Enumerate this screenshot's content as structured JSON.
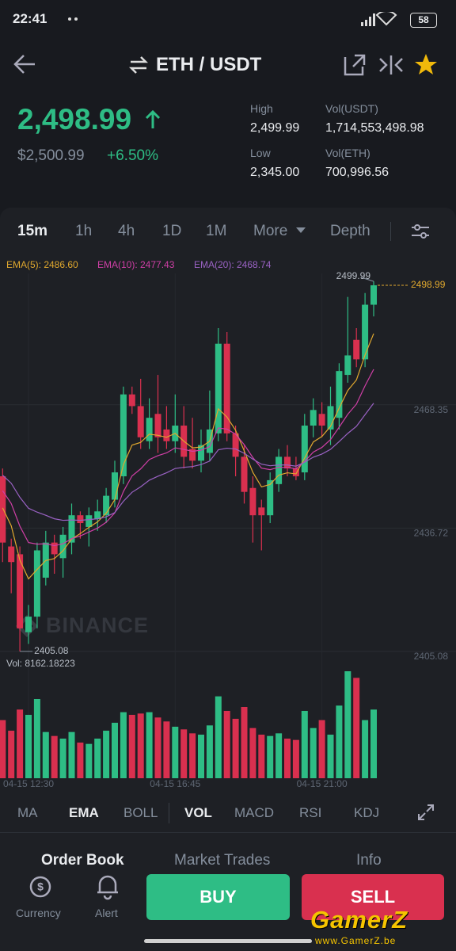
{
  "status_bar": {
    "time": "22:41",
    "battery": "58"
  },
  "header": {
    "pair": "ETH / USDT"
  },
  "price": {
    "last": "2,498.99",
    "usd": "$2,500.99",
    "change": "+6.50%"
  },
  "stats": [
    {
      "label": "High",
      "value": "2,499.99"
    },
    {
      "label": "Vol(USDT)",
      "value": "1,714,553,498.98"
    },
    {
      "label": "Low",
      "value": "2,345.00"
    },
    {
      "label": "Vol(ETH)",
      "value": "700,996.56"
    }
  ],
  "intervals": [
    "15m",
    "1h",
    "4h",
    "1D",
    "1M",
    "More",
    "Depth"
  ],
  "chart_data": {
    "type": "candlestick",
    "categories": [
      null,
      null,
      null,
      "04-15 12:30",
      null,
      null,
      null,
      null,
      null,
      null,
      null,
      null,
      null,
      null,
      null,
      null,
      null,
      null,
      null,
      null,
      "04-15 16:45",
      null,
      null,
      null,
      null,
      null,
      null,
      null,
      null,
      null,
      null,
      null,
      null,
      null,
      null,
      null,
      null,
      "04-15 21:00",
      null,
      null,
      null,
      null,
      null,
      null
    ],
    "open": [
      2450,
      2432,
      2430,
      2410,
      2414,
      2424,
      2433,
      2429,
      2433,
      2440,
      2437,
      2439,
      2440,
      2444,
      2450,
      2471,
      2468,
      2459,
      2466,
      2462,
      2459,
      2463,
      2457,
      2454,
      2456,
      2461,
      2484,
      2461,
      2455,
      2447,
      2442,
      2440,
      2448,
      2455,
      2452,
      2451,
      2463,
      2466,
      2462,
      2465,
      2476,
      2485,
      2480,
      2494
    ],
    "high": [
      2452,
      2434,
      2432,
      2417,
      2433,
      2436,
      2435,
      2437,
      2443,
      2441,
      2442,
      2444,
      2447,
      2454,
      2473,
      2473,
      2475,
      2470,
      2476,
      2468,
      2471,
      2468,
      2465,
      2462,
      2472,
      2488,
      2487,
      2463,
      2458,
      2450,
      2444,
      2451,
      2457,
      2458,
      2455,
      2466,
      2470,
      2469,
      2473,
      2479,
      2496,
      2488,
      2497,
      2499.99
    ],
    "low": [
      2428,
      2420,
      2405.08,
      2407,
      2411,
      2422,
      2425,
      2424,
      2430,
      2434,
      2432,
      2436,
      2438,
      2442,
      2448,
      2466,
      2457,
      2457,
      2456,
      2457,
      2456,
      2452,
      2452,
      2451,
      2454,
      2459,
      2459,
      2450,
      2443,
      2433,
      2431,
      2438,
      2446,
      2450,
      2449,
      2449,
      2460,
      2460,
      2458,
      2462,
      2474,
      2478,
      2478,
      2491
    ],
    "close": [
      2433,
      2428,
      2411,
      2414,
      2431,
      2433,
      2430,
      2435,
      2440,
      2438,
      2440,
      2441,
      2445,
      2451,
      2471,
      2468,
      2460,
      2465,
      2460,
      2459,
      2463,
      2455,
      2454,
      2458,
      2462,
      2484,
      2461,
      2455,
      2446,
      2440,
      2440,
      2449,
      2455,
      2452,
      2450,
      2463,
      2467,
      2463,
      2468,
      2477,
      2481,
      2480,
      2494,
      2498.99
    ],
    "volume": [
      4400,
      3600,
      5200,
      4800,
      6000,
      3500,
      3200,
      3000,
      3500,
      2700,
      2600,
      3000,
      3600,
      4200,
      5000,
      4800,
      4900,
      5000,
      4600,
      4300,
      3900,
      3700,
      3400,
      3300,
      4000,
      6200,
      5100,
      4500,
      5400,
      3800,
      3300,
      3200,
      3400,
      3000,
      2900,
      5100,
      3800,
      4400,
      3300,
      5500,
      8100,
      7600,
      4400,
      5200
    ],
    "series": [
      {
        "label": "EMA(5): 2486.60",
        "color": "#e0a82e",
        "values": [
          2441.9,
          2437.3,
          2428.5,
          2423.7,
          2426.1,
          2428.4,
          2428.9,
          2430.9,
          2433.9,
          2435.3,
          2436.9,
          2438.3,
          2440.5,
          2444.0,
          2453.0,
          2458.0,
          2458.7,
          2460.8,
          2460.5,
          2460.0,
          2461.0,
          2459.0,
          2457.3,
          2457.5,
          2459.0,
          2467.3,
          2465.2,
          2461.8,
          2456.5,
          2451.0,
          2447.3,
          2447.9,
          2450.3,
          2450.9,
          2450.6,
          2454.7,
          2458.8,
          2460.2,
          2462.8,
          2467.5,
          2472.0,
          2474.7,
          2481.1,
          2486.6
        ]
      },
      {
        "label": "EMA(10): 2477.43",
        "color": "#cf3fa6",
        "values": [
          2446.3,
          2443.0,
          2437.2,
          2433.0,
          2432.6,
          2432.7,
          2432.2,
          2432.7,
          2434.0,
          2434.7,
          2435.7,
          2436.7,
          2438.2,
          2440.6,
          2446.1,
          2450.1,
          2451.9,
          2454.3,
          2455.3,
          2456.0,
          2457.3,
          2456.9,
          2456.4,
          2456.7,
          2457.6,
          2462.4,
          2462.1,
          2460.8,
          2458.1,
          2454.8,
          2452.1,
          2451.7,
          2452.3,
          2452.3,
          2451.9,
          2453.8,
          2456.2,
          2457.4,
          2459.4,
          2462.6,
          2465.9,
          2468.5,
          2473.2,
          2477.43
        ]
      },
      {
        "label": "EMA(20): 2468.74",
        "color": "#9a62c4",
        "values": [
          2450.3,
          2448.2,
          2444.6,
          2441.8,
          2440.8,
          2440.0,
          2439.1,
          2438.7,
          2438.8,
          2438.7,
          2438.9,
          2439.1,
          2439.6,
          2440.7,
          2443.6,
          2445.9,
          2447.3,
          2449.0,
          2450.0,
          2450.9,
          2452.0,
          2452.3,
          2452.5,
          2453.0,
          2453.9,
          2456.8,
          2457.2,
          2457.0,
          2455.9,
          2454.4,
          2453.1,
          2452.7,
          2452.9,
          2452.9,
          2452.6,
          2453.6,
          2454.9,
          2455.7,
          2456.9,
          2458.9,
          2461.0,
          2462.8,
          2465.8,
          2468.74
        ]
      }
    ],
    "up_color": "#2ebd85",
    "down_color": "#d9304f",
    "ylim": [
      2401.42,
      2502.03
    ],
    "yticks": [
      2405.08,
      2436.72,
      2468.35
    ],
    "high_marker": 2499.99,
    "low_marker": 2405.08,
    "last_price": 2498.99,
    "volume_label": "Vol: 8162.18223",
    "watermark": "BINANCE"
  },
  "indicators": [
    "MA",
    "EMA",
    "BOLL",
    "VOL",
    "MACD",
    "RSI",
    "KDJ"
  ],
  "tabs": [
    "Order Book",
    "Market Trades",
    "Info"
  ],
  "nav": {
    "currency": "Currency",
    "alert": "Alert",
    "buy": "BUY",
    "sell": "SELL"
  },
  "overlay": {
    "brand": "GamerZ",
    "site": "www.GamerZ.be"
  }
}
